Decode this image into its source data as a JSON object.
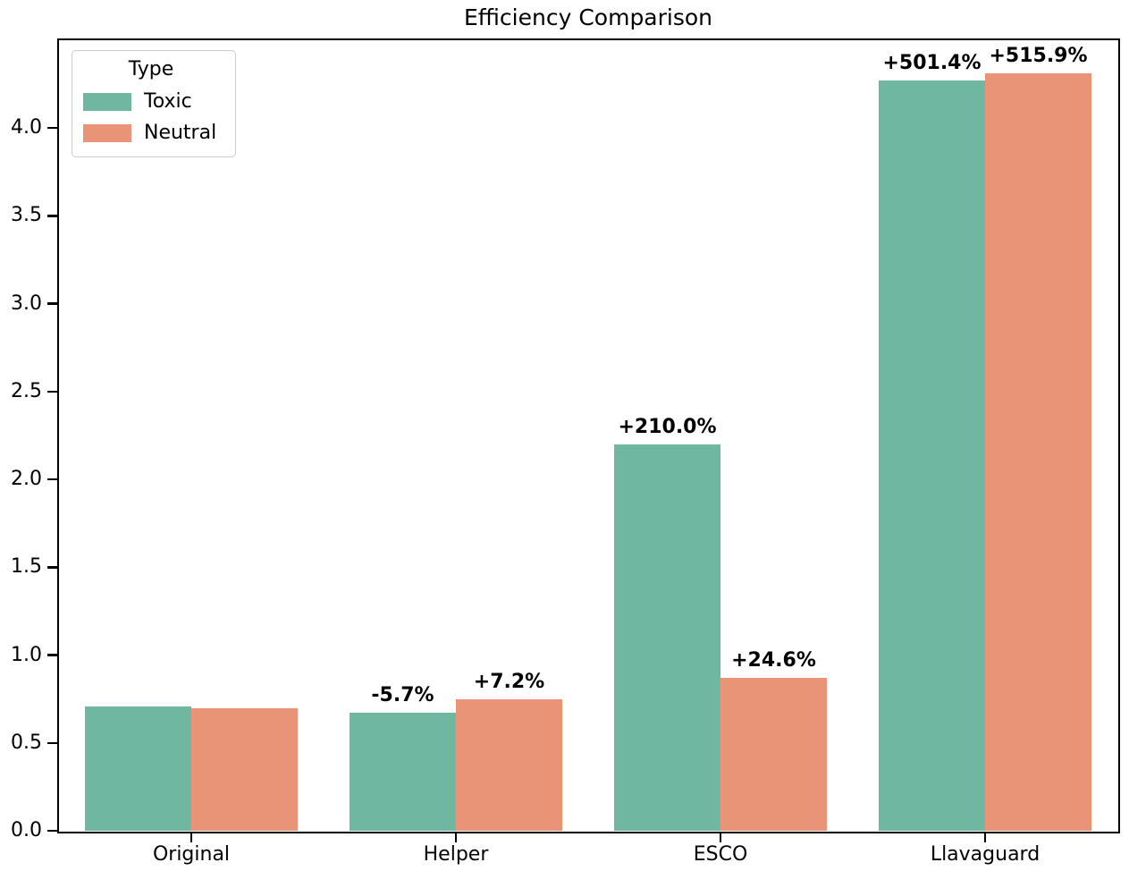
{
  "chart_data": {
    "type": "bar",
    "title": "Efficiency Comparison",
    "xlabel": "",
    "ylabel": "",
    "grid": false,
    "categories": [
      "Original",
      "Helper",
      "ESCO",
      "Llavaguard"
    ],
    "series": [
      {
        "name": "Toxic",
        "color": "#70b7a1",
        "values": [
          0.71,
          0.67,
          2.2,
          4.27
        ],
        "annotations": [
          "",
          "-5.7%",
          "+210.0%",
          "+501.4%"
        ]
      },
      {
        "name": "Neutral",
        "color": "#ea9477",
        "values": [
          0.7,
          0.75,
          0.87,
          4.31
        ],
        "annotations": [
          "",
          "+7.2%",
          "+24.6%",
          "+515.9%"
        ]
      }
    ],
    "legend": {
      "title": "Type",
      "position": "upper left"
    },
    "ylim": [
      0,
      4.5
    ],
    "yticks": [
      0.0,
      0.5,
      1.0,
      1.5,
      2.0,
      2.5,
      3.0,
      3.5,
      4.0
    ],
    "ytick_labels": [
      "0.0",
      "0.5",
      "1.0",
      "1.5",
      "2.0",
      "2.5",
      "3.0",
      "3.5",
      "4.0"
    ]
  },
  "colors": {
    "axis": "#000000",
    "background": "#ffffff",
    "annotation_text": "#000000",
    "legend_border": "#cccccc"
  }
}
